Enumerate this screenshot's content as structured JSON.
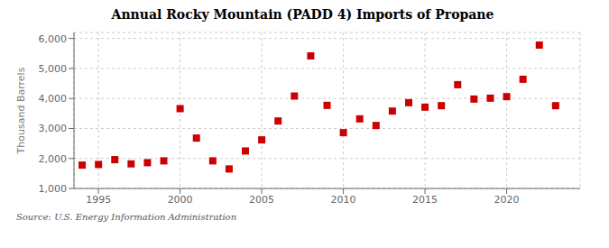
{
  "chart_data": {
    "type": "scatter",
    "title": "Annual Rocky Mountain (PADD 4) Imports of Propane",
    "y_label": "Thousand Barrels",
    "source": "Source: U.S. Energy Information Administration",
    "x": [
      1994,
      1995,
      1996,
      1997,
      1998,
      1999,
      2000,
      2001,
      2002,
      2003,
      2004,
      2005,
      2006,
      2007,
      2008,
      2009,
      2010,
      2011,
      2012,
      2013,
      2014,
      2015,
      2016,
      2017,
      2018,
      2019,
      2020,
      2021,
      2022,
      2023
    ],
    "values": [
      1780,
      1800,
      1960,
      1820,
      1860,
      1920,
      3660,
      2680,
      1920,
      1650,
      2250,
      2620,
      3250,
      4080,
      5420,
      3770,
      2860,
      3320,
      3100,
      3580,
      3860,
      3710,
      3760,
      4460,
      3980,
      4010,
      4060,
      4640,
      5780,
      3760
    ],
    "color": "#cc0000",
    "marker": "square",
    "xlim": [
      1993.5,
      2024.5
    ],
    "xticks": [
      1995,
      2000,
      2005,
      2010,
      2015,
      2020
    ],
    "ylim": [
      1000,
      6200
    ],
    "yticks": [
      {
        "value": 1000,
        "label": "1,000"
      },
      {
        "value": 2000,
        "label": "2,000"
      },
      {
        "value": 3000,
        "label": "3,000"
      },
      {
        "value": 4000,
        "label": "4,000"
      },
      {
        "value": 5000,
        "label": "5,000"
      },
      {
        "value": 6000,
        "label": "6,000"
      }
    ],
    "grid": true
  }
}
